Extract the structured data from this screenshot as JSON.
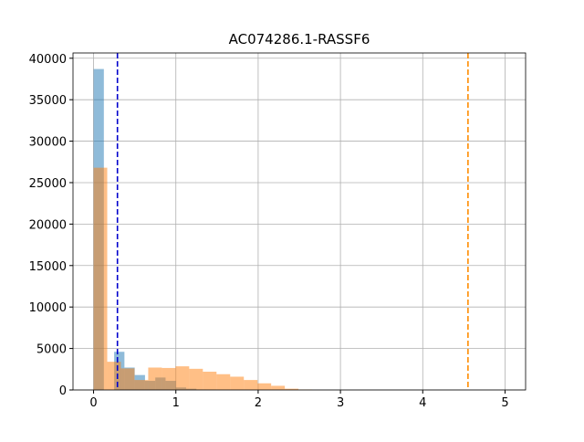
{
  "chart_data": {
    "type": "histogram",
    "title": "AC074286.1-RASSF6",
    "xlim": [
      -0.25,
      5.25
    ],
    "ylim": [
      0,
      40635
    ],
    "xticks": [
      0,
      1,
      2,
      3,
      4,
      5
    ],
    "yticks": [
      0,
      5000,
      10000,
      15000,
      20000,
      25000,
      30000,
      35000,
      40000
    ],
    "grid": true,
    "series": [
      {
        "color": "#1f77b4",
        "bins": [
          0,
          0.125,
          0.25,
          0.375,
          0.5,
          0.625,
          0.75,
          0.875,
          1,
          1.125,
          1.25,
          1.375,
          1.5
        ],
        "values": [
          38700,
          0,
          4600,
          2700,
          1800,
          1100,
          1500,
          1100,
          300,
          150,
          50,
          20
        ]
      },
      {
        "color": "#ff7f0e",
        "bins": [
          0,
          0.166,
          0.332,
          0.498,
          0.664,
          0.83,
          0.996,
          1.162,
          1.328,
          1.494,
          1.66,
          1.826,
          1.992,
          2.158,
          2.324,
          2.49,
          2.656
        ],
        "values": [
          26800,
          3400,
          2600,
          1200,
          2700,
          2650,
          2850,
          2550,
          2200,
          1900,
          1600,
          1200,
          800,
          500,
          150,
          50
        ]
      }
    ],
    "vlines": [
      {
        "x": 0.29,
        "color": "#0000cd"
      },
      {
        "x": 4.55,
        "color": "#ff8c00"
      }
    ]
  }
}
